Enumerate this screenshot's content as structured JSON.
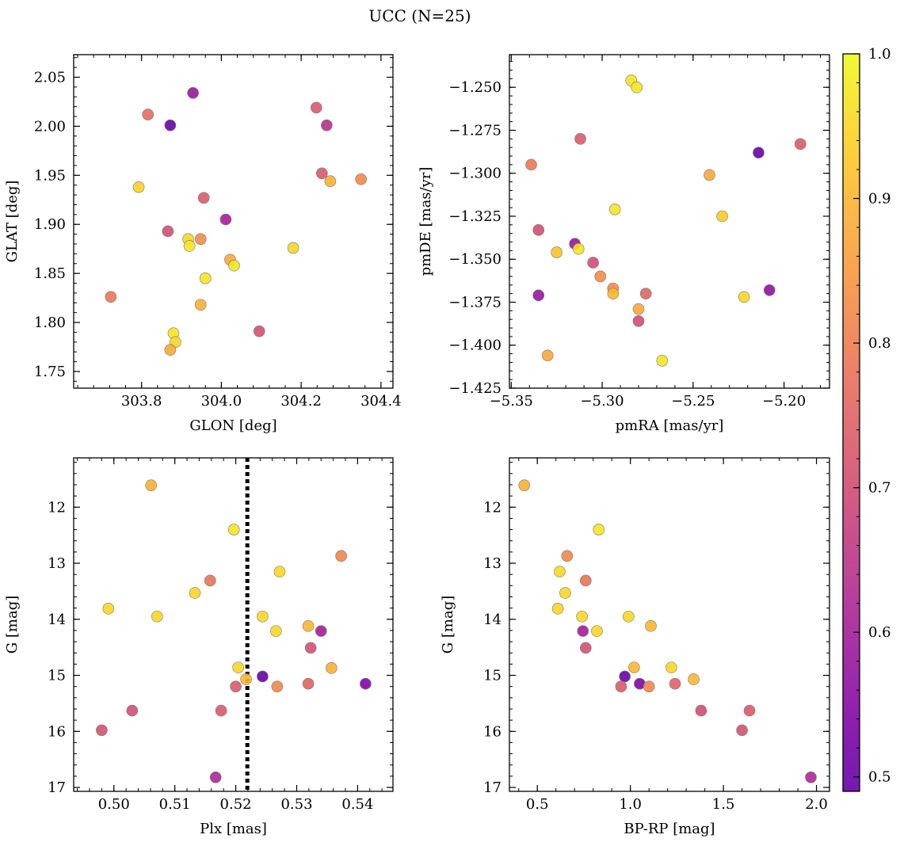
{
  "title": "UCC (N=25)",
  "chart_data": [
    {
      "type": "scatter",
      "xlabel": "GLON [deg]",
      "ylabel": "GLAT [deg]",
      "xlim": [
        303.63,
        304.43
      ],
      "ylim": [
        1.733,
        2.073
      ],
      "xticks": [
        303.8,
        304.0,
        304.2,
        304.4
      ],
      "xtick_labels": [
        "303.8",
        "304.0",
        "304.2",
        "304.4"
      ],
      "yticks": [
        1.75,
        1.8,
        1.85,
        1.9,
        1.95,
        2.0,
        2.05
      ],
      "ytick_labels": [
        "1.75",
        "1.80",
        "1.85",
        "1.90",
        "1.95",
        "2.00",
        "2.05"
      ],
      "y_inverted": false,
      "points": [
        {
          "x": 303.929,
          "y": 2.034,
          "c": 0.58
        },
        {
          "x": 303.816,
          "y": 2.012,
          "c": 0.77
        },
        {
          "x": 303.872,
          "y": 2.001,
          "c": 0.5
        },
        {
          "x": 304.238,
          "y": 2.019,
          "c": 0.73
        },
        {
          "x": 304.264,
          "y": 2.001,
          "c": 0.64
        },
        {
          "x": 303.793,
          "y": 1.938,
          "c": 0.94
        },
        {
          "x": 304.252,
          "y": 1.952,
          "c": 0.73
        },
        {
          "x": 304.273,
          "y": 1.944,
          "c": 0.89
        },
        {
          "x": 304.35,
          "y": 1.946,
          "c": 0.82
        },
        {
          "x": 303.956,
          "y": 1.927,
          "c": 0.73
        },
        {
          "x": 304.011,
          "y": 1.905,
          "c": 0.6
        },
        {
          "x": 303.866,
          "y": 1.893,
          "c": 0.7
        },
        {
          "x": 303.917,
          "y": 1.885,
          "c": 0.95
        },
        {
          "x": 303.948,
          "y": 1.885,
          "c": 0.83
        },
        {
          "x": 303.92,
          "y": 1.878,
          "c": 0.97
        },
        {
          "x": 304.18,
          "y": 1.876,
          "c": 0.95
        },
        {
          "x": 304.022,
          "y": 1.864,
          "c": 0.88
        },
        {
          "x": 304.032,
          "y": 1.858,
          "c": 0.97
        },
        {
          "x": 303.96,
          "y": 1.845,
          "c": 0.97
        },
        {
          "x": 303.723,
          "y": 1.826,
          "c": 0.79
        },
        {
          "x": 303.948,
          "y": 1.818,
          "c": 0.89
        },
        {
          "x": 304.095,
          "y": 1.791,
          "c": 0.71
        },
        {
          "x": 303.88,
          "y": 1.789,
          "c": 0.97
        },
        {
          "x": 303.885,
          "y": 1.78,
          "c": 0.95
        },
        {
          "x": 303.872,
          "y": 1.772,
          "c": 0.88
        }
      ]
    },
    {
      "type": "scatter",
      "xlabel": "pmRA [mas/yr]",
      "ylabel": "pmDE [mas/yr]",
      "xlim": [
        -5.351,
        -5.175
      ],
      "ylim": [
        -1.425,
        -1.231
      ],
      "xticks": [
        -5.35,
        -5.3,
        -5.25,
        -5.2
      ],
      "xtick_labels": [
        "−5.35",
        "−5.30",
        "−5.25",
        "−5.20"
      ],
      "yticks": [
        -1.425,
        -1.4,
        -1.375,
        -1.35,
        -1.325,
        -1.3,
        -1.275,
        -1.25
      ],
      "ytick_labels": [
        "−1.425",
        "−1.400",
        "−1.375",
        "−1.350",
        "−1.325",
        "−1.300",
        "−1.275",
        "−1.250"
      ],
      "y_inverted": false,
      "points": [
        {
          "x": -5.284,
          "y": -1.246,
          "c": 0.97
        },
        {
          "x": -5.281,
          "y": -1.25,
          "c": 0.97
        },
        {
          "x": -5.312,
          "y": -1.28,
          "c": 0.73
        },
        {
          "x": -5.214,
          "y": -1.288,
          "c": 0.5
        },
        {
          "x": -5.191,
          "y": -1.283,
          "c": 0.73
        },
        {
          "x": -5.339,
          "y": -1.295,
          "c": 0.79
        },
        {
          "x": -5.241,
          "y": -1.301,
          "c": 0.88
        },
        {
          "x": -5.293,
          "y": -1.321,
          "c": 0.97
        },
        {
          "x": -5.234,
          "y": -1.325,
          "c": 0.93
        },
        {
          "x": -5.335,
          "y": -1.333,
          "c": 0.7
        },
        {
          "x": -5.315,
          "y": -1.341,
          "c": 0.58
        },
        {
          "x": -5.325,
          "y": -1.346,
          "c": 0.92
        },
        {
          "x": -5.313,
          "y": -1.344,
          "c": 0.97
        },
        {
          "x": -5.305,
          "y": -1.352,
          "c": 0.7
        },
        {
          "x": -5.301,
          "y": -1.36,
          "c": 0.83
        },
        {
          "x": -5.294,
          "y": -1.367,
          "c": 0.83
        },
        {
          "x": -5.294,
          "y": -1.37,
          "c": 0.9
        },
        {
          "x": -5.276,
          "y": -1.37,
          "c": 0.75
        },
        {
          "x": -5.335,
          "y": -1.371,
          "c": 0.58
        },
        {
          "x": -5.222,
          "y": -1.372,
          "c": 0.95
        },
        {
          "x": -5.208,
          "y": -1.368,
          "c": 0.57
        },
        {
          "x": -5.28,
          "y": -1.379,
          "c": 0.88
        },
        {
          "x": -5.28,
          "y": -1.386,
          "c": 0.7
        },
        {
          "x": -5.33,
          "y": -1.406,
          "c": 0.88
        },
        {
          "x": -5.267,
          "y": -1.409,
          "c": 0.97
        }
      ]
    },
    {
      "type": "scatter",
      "xlabel": "Plx [mas]",
      "ylabel": "G [mag]",
      "xlim": [
        0.4934,
        0.5458
      ],
      "ylim": [
        17.07,
        11.12
      ],
      "xticks": [
        0.5,
        0.51,
        0.52,
        0.53,
        0.54
      ],
      "xtick_labels": [
        "0.50",
        "0.51",
        "0.52",
        "0.53",
        "0.54"
      ],
      "yticks": [
        12,
        13,
        14,
        15,
        16,
        17
      ],
      "ytick_labels": [
        "12",
        "13",
        "14",
        "15",
        "16",
        "17"
      ],
      "y_inverted": true,
      "vline": 0.5219,
      "points": [
        {
          "x": 0.5061,
          "y": 11.61,
          "c": 0.89
        },
        {
          "x": 0.5197,
          "y": 12.4,
          "c": 0.97
        },
        {
          "x": 0.5373,
          "y": 12.87,
          "c": 0.82
        },
        {
          "x": 0.5272,
          "y": 13.15,
          "c": 0.95
        },
        {
          "x": 0.5158,
          "y": 13.31,
          "c": 0.78
        },
        {
          "x": 0.5133,
          "y": 13.53,
          "c": 0.95
        },
        {
          "x": 0.4991,
          "y": 13.81,
          "c": 0.95
        },
        {
          "x": 0.5071,
          "y": 13.95,
          "c": 0.95
        },
        {
          "x": 0.5244,
          "y": 13.95,
          "c": 0.95
        },
        {
          "x": 0.5266,
          "y": 14.21,
          "c": 0.95
        },
        {
          "x": 0.5319,
          "y": 14.12,
          "c": 0.9
        },
        {
          "x": 0.534,
          "y": 14.21,
          "c": 0.6
        },
        {
          "x": 0.5323,
          "y": 14.51,
          "c": 0.71
        },
        {
          "x": 0.5204,
          "y": 14.86,
          "c": 0.95
        },
        {
          "x": 0.5357,
          "y": 14.87,
          "c": 0.89
        },
        {
          "x": 0.5244,
          "y": 15.02,
          "c": 0.5
        },
        {
          "x": 0.5217,
          "y": 15.07,
          "c": 0.9
        },
        {
          "x": 0.52,
          "y": 15.2,
          "c": 0.73
        },
        {
          "x": 0.5268,
          "y": 15.2,
          "c": 0.82
        },
        {
          "x": 0.5319,
          "y": 15.15,
          "c": 0.75
        },
        {
          "x": 0.5413,
          "y": 15.15,
          "c": 0.54
        },
        {
          "x": 0.503,
          "y": 15.63,
          "c": 0.7
        },
        {
          "x": 0.5176,
          "y": 15.63,
          "c": 0.73
        },
        {
          "x": 0.498,
          "y": 15.98,
          "c": 0.71
        },
        {
          "x": 0.5167,
          "y": 16.82,
          "c": 0.62
        }
      ]
    },
    {
      "type": "scatter",
      "xlabel": "BP-RP [mag]",
      "ylabel": "G [mag]",
      "xlim": [
        0.35,
        2.07
      ],
      "ylim": [
        17.07,
        11.12
      ],
      "xticks": [
        0.5,
        1.0,
        1.5,
        2.0
      ],
      "xtick_labels": [
        "0.5",
        "1.0",
        "1.5",
        "2.0"
      ],
      "yticks": [
        12,
        13,
        14,
        15,
        16,
        17
      ],
      "ytick_labels": [
        "12",
        "13",
        "14",
        "15",
        "16",
        "17"
      ],
      "y_inverted": true,
      "points": [
        {
          "x": 0.43,
          "y": 11.61,
          "c": 0.89
        },
        {
          "x": 0.83,
          "y": 12.4,
          "c": 0.97
        },
        {
          "x": 0.66,
          "y": 12.87,
          "c": 0.82
        },
        {
          "x": 0.62,
          "y": 13.15,
          "c": 0.95
        },
        {
          "x": 0.76,
          "y": 13.31,
          "c": 0.78
        },
        {
          "x": 0.65,
          "y": 13.53,
          "c": 0.95
        },
        {
          "x": 0.61,
          "y": 13.81,
          "c": 0.95
        },
        {
          "x": 0.74,
          "y": 13.95,
          "c": 0.95
        },
        {
          "x": 0.99,
          "y": 13.95,
          "c": 0.95
        },
        {
          "x": 0.82,
          "y": 14.21,
          "c": 0.95
        },
        {
          "x": 0.745,
          "y": 14.21,
          "c": 0.6
        },
        {
          "x": 1.11,
          "y": 14.12,
          "c": 0.9
        },
        {
          "x": 0.76,
          "y": 14.51,
          "c": 0.71
        },
        {
          "x": 1.02,
          "y": 14.86,
          "c": 0.9
        },
        {
          "x": 1.22,
          "y": 14.86,
          "c": 0.95
        },
        {
          "x": 0.97,
          "y": 15.02,
          "c": 0.5
        },
        {
          "x": 1.34,
          "y": 15.07,
          "c": 0.9
        },
        {
          "x": 0.95,
          "y": 15.2,
          "c": 0.73
        },
        {
          "x": 1.05,
          "y": 15.15,
          "c": 0.54
        },
        {
          "x": 1.1,
          "y": 15.2,
          "c": 0.82
        },
        {
          "x": 1.24,
          "y": 15.15,
          "c": 0.75
        },
        {
          "x": 1.38,
          "y": 15.63,
          "c": 0.7
        },
        {
          "x": 1.64,
          "y": 15.63,
          "c": 0.73
        },
        {
          "x": 1.6,
          "y": 15.98,
          "c": 0.71
        },
        {
          "x": 1.97,
          "y": 16.82,
          "c": 0.62
        }
      ]
    }
  ],
  "colorbar": {
    "cmap": "plasma",
    "range": [
      0.49,
      1.0
    ],
    "ticks": [
      0.5,
      0.6,
      0.7,
      0.8,
      0.9,
      1.0
    ],
    "tick_labels": [
      "0.5",
      "0.6",
      "0.7",
      "0.8",
      "0.9",
      "1.0"
    ]
  }
}
